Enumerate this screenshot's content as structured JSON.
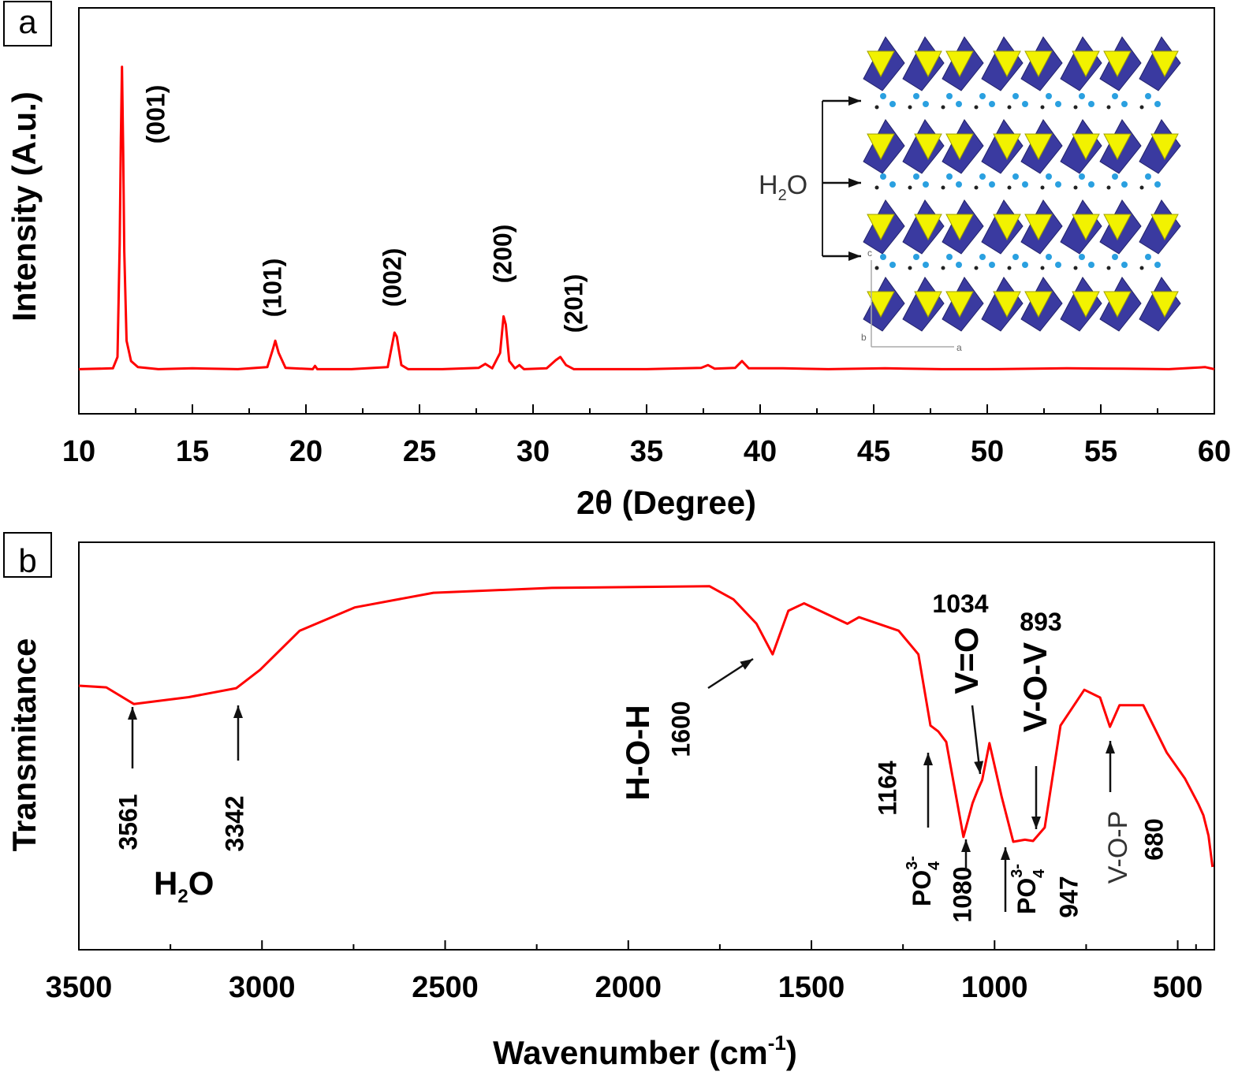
{
  "colors": {
    "series": "#ff0000",
    "axis": "#000000",
    "inset_octahedra": "#3a3aa0",
    "inset_tetrahedra": "#f2f200",
    "inset_water": "#2aa0e0"
  },
  "chart_data": [
    {
      "panel_label": "a",
      "type": "line",
      "xlabel": "2θ (Degree)",
      "ylabel": "Intensity (A.u.)",
      "xlim": [
        10,
        60
      ],
      "ylim": [
        0,
        100
      ],
      "x_ticks": [
        "10",
        "15",
        "20",
        "25",
        "30",
        "35",
        "40",
        "45",
        "50",
        "55",
        "60"
      ],
      "y_ticks_shown": false,
      "grid": false,
      "series": [
        {
          "x": [
            10,
            11.5,
            11.7,
            11.8,
            11.85,
            11.9,
            11.95,
            12.0,
            12.1,
            12.3,
            12.6,
            13.5,
            15,
            17,
            18.3,
            18.55,
            18.65,
            18.8,
            19.1,
            20.3,
            20.4,
            20.5,
            22,
            23.6,
            23.9,
            24.0,
            24.2,
            24.5,
            26,
            27.6,
            27.9,
            28.2,
            28.55,
            28.7,
            28.8,
            28.95,
            29.2,
            29.4,
            29.6,
            30.6,
            31.0,
            31.2,
            31.45,
            31.8,
            33,
            35,
            37.4,
            37.7,
            38.0,
            38.9,
            39.2,
            39.5,
            41,
            43,
            45.5,
            48,
            50,
            53.5,
            56,
            58,
            59.6,
            60
          ],
          "y": [
            11,
            11.2,
            14,
            42,
            68,
            85.5,
            65,
            40,
            18,
            13,
            11.5,
            11,
            11.2,
            11,
            11.5,
            16,
            18,
            15,
            11.3,
            11,
            11.8,
            11,
            11,
            11.5,
            20,
            19,
            12,
            11,
            11,
            11.3,
            12.3,
            11.2,
            15,
            24,
            22,
            13,
            11.2,
            12,
            11,
            11.2,
            13.2,
            14,
            12,
            11,
            11,
            11,
            11.3,
            12,
            11.1,
            11.3,
            13,
            11.2,
            11.2,
            11,
            11.2,
            11,
            11,
            11.2,
            11.1,
            11,
            11.5,
            11
          ]
        }
      ],
      "peak_labels": [
        "(001)",
        "(101)",
        "(002)",
        "(200)",
        "(201)"
      ],
      "inset": {
        "label_main": "H",
        "label_sub": "2",
        "label_end": "O",
        "axis_labels": [
          "c",
          "b",
          "a"
        ]
      }
    },
    {
      "panel_label": "b",
      "type": "line",
      "xlabel_main": "Wavenumber (cm",
      "xlabel_sup": "-1",
      "xlabel_end": ")",
      "ylabel": "Transmitance",
      "xlim": [
        3500,
        400
      ],
      "ylim": [
        0,
        100
      ],
      "x_ticks": [
        "3500",
        "3000",
        "2500",
        "2000",
        "1500",
        "1000",
        "500"
      ],
      "y_ticks_shown": false,
      "grid": false,
      "series": [
        {
          "x": [
            3500,
            3425,
            3350,
            3200,
            3070,
            3005,
            2897,
            2747,
            2532,
            2209,
            1778,
            1713,
            1650,
            1606,
            1563,
            1520,
            1402,
            1370,
            1262,
            1208,
            1175,
            1154,
            1132,
            1085,
            1060,
            1047,
            1034,
            1014,
            981,
            949,
            917,
            895,
            863,
            820,
            755,
            712,
            685,
            659,
            594,
            530,
            480,
            444,
            430,
            416,
            405
          ],
          "y": [
            64.8,
            64.4,
            60.3,
            62,
            64.2,
            68.7,
            78.3,
            84,
            87.6,
            88.8,
            89.2,
            86,
            80,
            72.5,
            83.2,
            85,
            80,
            81.6,
            78.3,
            72.5,
            55,
            53.6,
            51,
            27.7,
            36,
            39,
            41.6,
            50.7,
            37.7,
            26.5,
            27,
            26.7,
            30,
            55,
            63.8,
            61.9,
            54.7,
            60,
            60,
            48.4,
            42,
            35.8,
            33,
            28,
            20.3
          ]
        }
      ],
      "annotations": {
        "a3561": "3561",
        "a3342": "3342",
        "water": {
          "main": "H",
          "sub": "2",
          "end": "O"
        },
        "hoh": "H-O-H",
        "a1600": "1600",
        "a1164": "1164",
        "po4_1": {
          "main": "PO",
          "sup": "3-",
          "sub": "4"
        },
        "a1080": "1080",
        "a1034": "1034",
        "vo": "V=O",
        "a893": "893",
        "vov": "V-O-V",
        "po4_2": {
          "main": "PO",
          "sup": "3-",
          "sub": "4"
        },
        "a947": "947",
        "vop": "V-O-P",
        "a680": "680"
      }
    }
  ]
}
